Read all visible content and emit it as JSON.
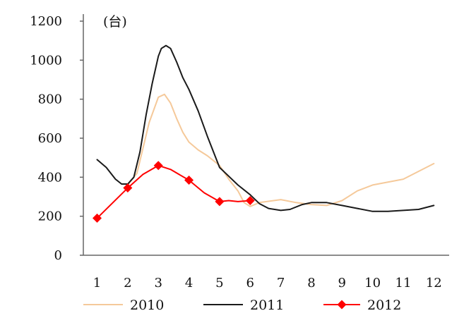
{
  "chart_data": {
    "type": "line",
    "unit_label": "(台)",
    "x": [
      1,
      2,
      3,
      4,
      5,
      6,
      7,
      8,
      9,
      10,
      11,
      12
    ],
    "x_tick_labels": [
      "1",
      "2",
      "3",
      "4",
      "5",
      "6",
      "7",
      "8",
      "9",
      "10",
      "11",
      "12"
    ],
    "xlim": [
      0.55,
      12.5
    ],
    "ylim": [
      0,
      1200
    ],
    "y_ticks": [
      0,
      200,
      400,
      600,
      800,
      1000,
      1200
    ],
    "y_tick_labels": [
      "0",
      "200",
      "400",
      "600",
      "800",
      "1000",
      "1200"
    ],
    "grid": false,
    "legend_position": "bottom",
    "series": [
      {
        "name": "2010",
        "color": "#f5c99a",
        "marker": "none",
        "points": [
          [
            2.0,
            360
          ],
          [
            2.3,
            420
          ],
          [
            2.7,
            680
          ],
          [
            3.0,
            810
          ],
          [
            3.2,
            825
          ],
          [
            3.4,
            780
          ],
          [
            3.6,
            700
          ],
          [
            3.8,
            630
          ],
          [
            4.0,
            580
          ],
          [
            4.3,
            540
          ],
          [
            4.6,
            510
          ],
          [
            5.0,
            460
          ],
          [
            5.3,
            390
          ],
          [
            5.6,
            330
          ],
          [
            5.8,
            270
          ],
          [
            6.0,
            250
          ],
          [
            6.3,
            270
          ],
          [
            7.0,
            285
          ],
          [
            7.5,
            270
          ],
          [
            8.0,
            260
          ],
          [
            8.5,
            255
          ],
          [
            9.0,
            280
          ],
          [
            9.5,
            330
          ],
          [
            10.0,
            360
          ],
          [
            11.0,
            390
          ],
          [
            12.0,
            470
          ]
        ]
      },
      {
        "name": "2011",
        "color": "#1a1a1a",
        "marker": "none",
        "points": [
          [
            1.0,
            490
          ],
          [
            1.3,
            450
          ],
          [
            1.6,
            390
          ],
          [
            1.8,
            365
          ],
          [
            2.0,
            365
          ],
          [
            2.2,
            400
          ],
          [
            2.4,
            530
          ],
          [
            2.6,
            720
          ],
          [
            2.8,
            880
          ],
          [
            3.0,
            1020
          ],
          [
            3.1,
            1060
          ],
          [
            3.25,
            1075
          ],
          [
            3.4,
            1060
          ],
          [
            3.6,
            990
          ],
          [
            3.8,
            910
          ],
          [
            4.0,
            850
          ],
          [
            4.3,
            740
          ],
          [
            4.6,
            610
          ],
          [
            5.0,
            450
          ],
          [
            5.2,
            420
          ],
          [
            5.6,
            360
          ],
          [
            6.0,
            310
          ],
          [
            6.3,
            265
          ],
          [
            6.6,
            240
          ],
          [
            7.0,
            230
          ],
          [
            7.3,
            235
          ],
          [
            7.7,
            260
          ],
          [
            8.0,
            270
          ],
          [
            8.5,
            270
          ],
          [
            9.0,
            255
          ],
          [
            9.5,
            240
          ],
          [
            10.0,
            225
          ],
          [
            10.5,
            225
          ],
          [
            11.0,
            230
          ],
          [
            11.5,
            235
          ],
          [
            12.0,
            255
          ]
        ]
      },
      {
        "name": "2012",
        "color": "#ff0000",
        "marker": "diamond",
        "points": [
          [
            1.0,
            190
          ],
          [
            2.0,
            345
          ],
          [
            3.0,
            460
          ],
          [
            4.0,
            385
          ],
          [
            5.0,
            275
          ],
          [
            6.0,
            280
          ]
        ],
        "path": [
          [
            1.0,
            190
          ],
          [
            2.0,
            345
          ],
          [
            2.5,
            415
          ],
          [
            3.0,
            460
          ],
          [
            3.4,
            440
          ],
          [
            4.0,
            385
          ],
          [
            4.5,
            320
          ],
          [
            5.0,
            275
          ],
          [
            5.3,
            280
          ],
          [
            5.6,
            275
          ],
          [
            6.0,
            280
          ]
        ]
      }
    ]
  }
}
